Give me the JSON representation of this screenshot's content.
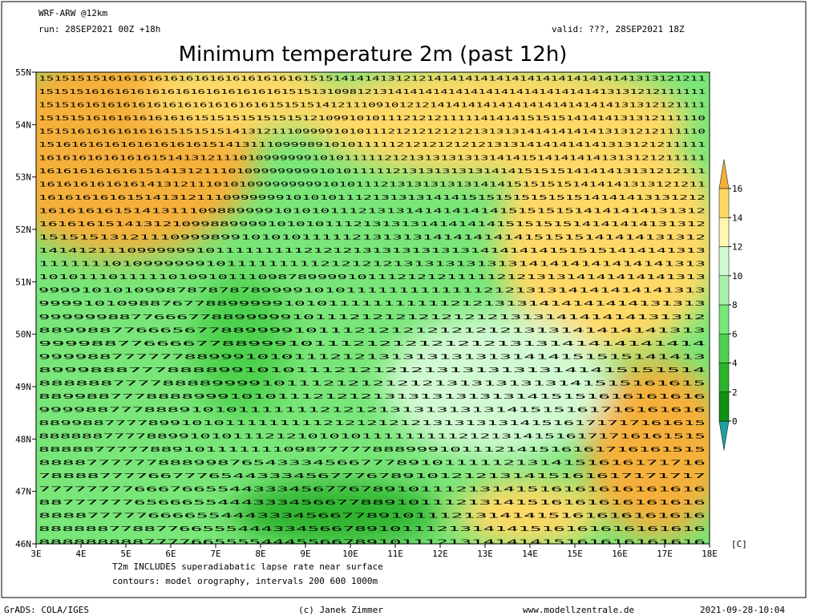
{
  "header": {
    "model": "WRF-ARW @12km",
    "run": "run: 28SEP2021 00Z +18h",
    "valid": "valid: ???, 28SEP2021 18Z",
    "title": "Minimum temperature 2m (past 12h)"
  },
  "map": {
    "lat_labels": [
      "55N",
      "54N",
      "53N",
      "52N",
      "51N",
      "50N",
      "49N",
      "48N",
      "47N",
      "46N"
    ],
    "lon_labels": [
      "3E",
      "4E",
      "5E",
      "6E",
      "7E",
      "8E",
      "9E",
      "10E",
      "11E",
      "12E",
      "13E",
      "14E",
      "15E",
      "16E",
      "17E",
      "18E"
    ],
    "grid_rows": [
      "15151515161616161616161616161616161515141414131212141414141414141414141414141313121211",
      "1515151616161616161616161616161615151310981213141414141414141414141414141413131212111111",
      "151516161616161616161616161616151515141211109101212141414141414141414141414131312121111",
      "15151516161616161616151515151515151210991010111212121111141414151515141414131312111110",
      "15151616161616161515151514131211109999101011121212121212131313141414141413131212111110",
      "1516161616161616161615141311109998910101111121212121212131314141414141313121211111",
      "16161616161616151413121110109999991010111112121313131313141415141414141313121211111",
      "161616161616151413121110109999999910101111121313131313141415151514141413131212111",
      "16161616161614131211101010999999991010111213131313131414151515151414141313121211",
      "1616161616151413121110999999101010111213131314141515151515151514141413131212",
      "16161616151413111098899991010101112131314141414141515151514141414131312",
      "1616161514131210998899991010101112131313141414141515151514141414131312",
      "151515131211109998991010101111121313131414141414151515141414131312",
      "14141211109999991011111111121212131313131313141414141515151414141313",
      "1111111010999999101111111112121212131313131313141414141414141313",
      "1010111011111010910111098789999101112121211111212131314141414141313",
      "999910101099878787878999910101111111111111212131314141414141313",
      "999910109887677889999910101111111111121213131414141414131313",
      "9999998877666778899999101112121212121212131314141414131312",
      "8899887766656778899991011121212121212121313141414141313",
      "999988776666778899910111212121212121313141414141414",
      "9999887777778899910101112121313131313131414151515141413",
      "8999888777888899101011121212121313131313141415151514",
      "888888777788889999101112121212121313131313141515161615",
      "88998877788889991010111212121313131313131415151616161616",
      "999988777888910101111111212121313131313141515161716161616",
      "8899887777899101011111111121212121213131313141516171717161615",
      "88888877778899101011121210101011111111121213141516171716161515",
      "888887777788910111111109877777888999101112141516161716161515",
      "88887777778889987654333456677789101111121314151616171716",
      "7888877776677765443334567776789101212131415161617171717",
      "77777777666766554433345677678910111213141516161616161616",
      "88777777656665544433345667788910111213141516161616161616",
      "8888777776666554443334566778910111213141415161616161616",
      "888888778877665554443345667891011121314141516161616161616",
      "888888888777766555544455667891011121314141415161616161616"
    ],
    "unit": "[C]"
  },
  "legend": {
    "ticks": [
      0,
      2,
      4,
      6,
      8,
      10,
      12,
      14,
      16
    ],
    "colors": [
      "#1ea0a0",
      "#109010",
      "#2db42d",
      "#4ed24e",
      "#78e678",
      "#a8f2a8",
      "#d2fad2",
      "#fff7b0",
      "#ffd966",
      "#f5b03a"
    ]
  },
  "notes": {
    "line1": "T2m INCLUDES superadiabatic lapse rate near surface",
    "line2": "contours: model orography, intervals 200 600 1000m"
  },
  "footer": {
    "left": "GrADS: COLA/IGES",
    "center": "(c) Janek Zimmer",
    "site": "www.modellzentrale.de",
    "date": "2021-09-28-10:04"
  }
}
